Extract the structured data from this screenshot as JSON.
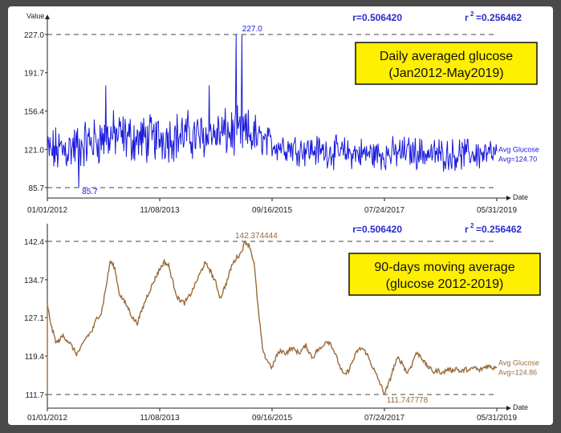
{
  "chart_data": [
    {
      "type": "line",
      "ylabel": "Value",
      "xlabel": "Date",
      "y_ticks": [
        "227.0",
        "191.7",
        "156.4",
        "121.0",
        "85.7"
      ],
      "x_ticks": [
        "01/01/2012",
        "11/08/2013",
        "09/16/2015",
        "07/24/2017",
        "05/31/2019"
      ],
      "ylim": [
        85.7,
        227.0
      ],
      "stats": {
        "r": "r=0.506420",
        "r2_prefix": "r",
        "r2_sup": "2",
        "r2_value": "=0.256462"
      },
      "annotation_box": {
        "line1": "Daily averaged glucose",
        "line2": "(Jan2012-May2019)"
      },
      "max_label": "227.0",
      "min_label": "85.7",
      "avg_label": {
        "line1": "Avg Glucose",
        "line2": "Avg=124.70"
      },
      "series": [
        {
          "color": "#1a1adb",
          "description": "daily averaged glucose, noisy around ~130 in 2012-2015, dropping to ~118 after late 2015",
          "baseline": [
            [
              0,
              118
            ],
            [
              0.05,
              122
            ],
            [
              0.1,
              128
            ],
            [
              0.15,
              134
            ],
            [
              0.2,
              130
            ],
            [
              0.25,
              132
            ],
            [
              0.3,
              134
            ],
            [
              0.35,
              133
            ],
            [
              0.4,
              136
            ],
            [
              0.45,
              135
            ],
            [
              0.5,
              126
            ],
            [
              0.55,
              122
            ],
            [
              0.6,
              120
            ],
            [
              0.65,
              118
            ],
            [
              0.7,
              117
            ],
            [
              0.75,
              116
            ],
            [
              0.8,
              119
            ],
            [
              0.85,
              117
            ],
            [
              0.9,
              116
            ],
            [
              0.95,
              117
            ],
            [
              1,
              116
            ]
          ],
          "spikes": [
            [
              0.07,
              85.7
            ],
            [
              0.42,
              227.0
            ],
            [
              0.433,
              227.0
            ],
            [
              0.13,
              180
            ],
            [
              0.36,
              180
            ]
          ]
        }
      ]
    },
    {
      "type": "line",
      "ylabel": "",
      "xlabel": "Date",
      "y_ticks": [
        "142.4",
        "134.7",
        "127.1",
        "119.4",
        "111.7"
      ],
      "x_ticks": [
        "01/01/2012",
        "11/08/2013",
        "09/16/2015",
        "07/24/2017",
        "05/31/2019"
      ],
      "ylim": [
        111.7,
        142.4
      ],
      "stats": {
        "r": "r=0.506420",
        "r2_prefix": "r",
        "r2_sup": "2",
        "r2_value": "=0.256462"
      },
      "annotation_box": {
        "line1": "90-days moving average",
        "line2": "(glucose 2012-2019)"
      },
      "max_label": "142.374444",
      "min_label": "111.747778",
      "avg_label": {
        "line1": "Avg Glucose",
        "line2": "Avg=124.86"
      },
      "series": [
        {
          "color": "#9a6b3a",
          "points": [
            [
              0.0,
              129.5
            ],
            [
              0.01,
              125
            ],
            [
              0.02,
              122
            ],
            [
              0.035,
              123.5
            ],
            [
              0.05,
              122
            ],
            [
              0.065,
              119.8
            ],
            [
              0.075,
              121
            ],
            [
              0.085,
              123
            ],
            [
              0.1,
              124.5
            ],
            [
              0.11,
              127
            ],
            [
              0.12,
              128
            ],
            [
              0.13,
              133
            ],
            [
              0.14,
              138.5
            ],
            [
              0.15,
              137
            ],
            [
              0.16,
              132
            ],
            [
              0.17,
              130.5
            ],
            [
              0.18,
              129
            ],
            [
              0.19,
              127
            ],
            [
              0.2,
              126
            ],
            [
              0.21,
              128.5
            ],
            [
              0.22,
              131
            ],
            [
              0.23,
              133
            ],
            [
              0.245,
              136
            ],
            [
              0.26,
              138.3
            ],
            [
              0.27,
              137.5
            ],
            [
              0.28,
              134
            ],
            [
              0.29,
              131
            ],
            [
              0.305,
              130
            ],
            [
              0.32,
              132
            ],
            [
              0.335,
              135
            ],
            [
              0.35,
              138
            ],
            [
              0.36,
              137
            ],
            [
              0.375,
              134
            ],
            [
              0.385,
              131
            ],
            [
              0.4,
              134.5
            ],
            [
              0.41,
              137.5
            ],
            [
              0.42,
              139
            ],
            [
              0.43,
              140
            ],
            [
              0.44,
              142.37
            ],
            [
              0.45,
              141.5
            ],
            [
              0.46,
              138
            ],
            [
              0.47,
              128
            ],
            [
              0.48,
              120
            ],
            [
              0.49,
              118.5
            ],
            [
              0.5,
              117
            ],
            [
              0.51,
              119.5
            ],
            [
              0.52,
              120.5
            ],
            [
              0.53,
              120
            ],
            [
              0.545,
              121
            ],
            [
              0.56,
              120
            ],
            [
              0.575,
              121.5
            ],
            [
              0.59,
              119
            ],
            [
              0.6,
              120.5
            ],
            [
              0.61,
              121
            ],
            [
              0.62,
              122.5
            ],
            [
              0.63,
              122
            ],
            [
              0.64,
              120
            ],
            [
              0.65,
              117.5
            ],
            [
              0.66,
              115.5
            ],
            [
              0.67,
              116.5
            ],
            [
              0.68,
              118.5
            ],
            [
              0.69,
              120.5
            ],
            [
              0.7,
              121
            ],
            [
              0.71,
              120
            ],
            [
              0.72,
              118
            ],
            [
              0.73,
              116
            ],
            [
              0.74,
              114
            ],
            [
              0.75,
              111.75
            ],
            [
              0.76,
              114
            ],
            [
              0.77,
              117
            ],
            [
              0.78,
              119
            ],
            [
              0.79,
              118
            ],
            [
              0.8,
              116
            ],
            [
              0.81,
              117.5
            ],
            [
              0.82,
              120
            ],
            [
              0.83,
              119.5
            ],
            [
              0.84,
              118
            ],
            [
              0.85,
              117
            ],
            [
              0.86,
              116.2
            ],
            [
              0.87,
              116.5
            ],
            [
              0.88,
              116
            ],
            [
              0.89,
              116.8
            ],
            [
              0.9,
              116.5
            ],
            [
              0.91,
              117
            ],
            [
              0.92,
              116.2
            ],
            [
              0.93,
              116.8
            ],
            [
              0.94,
              116.5
            ],
            [
              0.95,
              117.2
            ],
            [
              0.96,
              116.5
            ],
            [
              0.97,
              117
            ],
            [
              0.98,
              117.5
            ],
            [
              0.99,
              117
            ],
            [
              1.0,
              117.4
            ]
          ]
        }
      ]
    }
  ]
}
